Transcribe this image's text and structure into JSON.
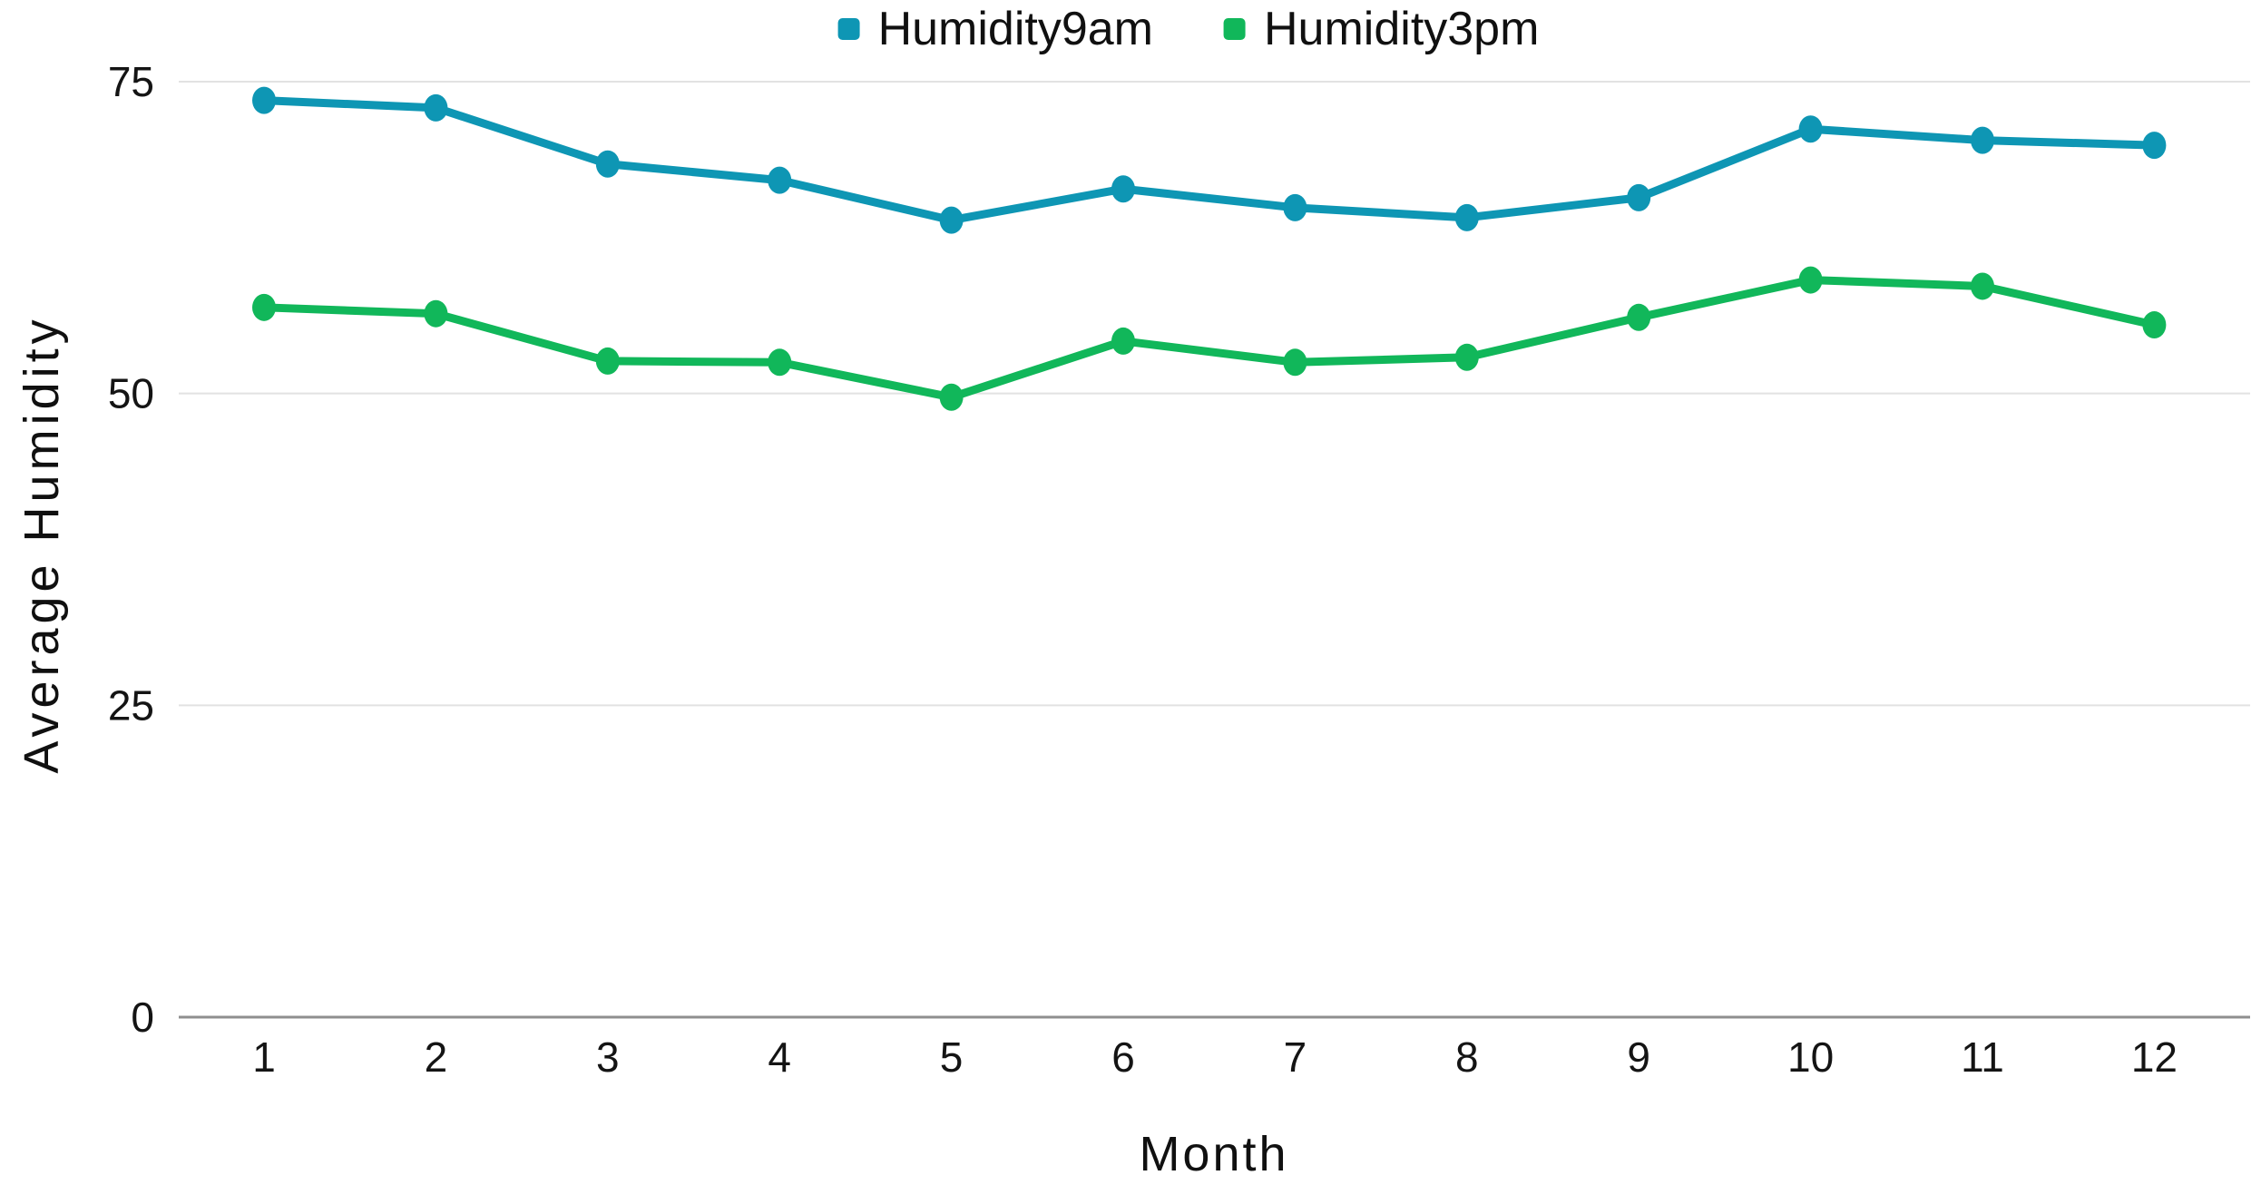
{
  "chart_data": {
    "type": "line",
    "title": "",
    "xlabel": "Month",
    "ylabel": "Average Humidity",
    "x": [
      1,
      2,
      3,
      4,
      5,
      6,
      7,
      8,
      9,
      10,
      11,
      12
    ],
    "yticks": [
      0,
      25,
      50,
      75
    ],
    "ylim": [
      0,
      78
    ],
    "grid": true,
    "legend_position": "top-center",
    "series": [
      {
        "name": "Humidity9am",
        "color": "#0E96B4",
        "values": [
          73.5,
          72.9,
          68.4,
          67.1,
          63.9,
          66.4,
          64.9,
          64.1,
          65.7,
          71.2,
          70.3,
          69.9
        ]
      },
      {
        "name": "Humidity3pm",
        "color": "#11B75A",
        "values": [
          56.9,
          56.4,
          52.6,
          52.5,
          49.7,
          54.2,
          52.5,
          52.9,
          56.1,
          59.1,
          58.6,
          55.5
        ]
      }
    ],
    "axis_colors": {
      "zero_line": "#8f8f8f",
      "gridline": "#e2e2e2",
      "tick_text": "#141414"
    }
  }
}
